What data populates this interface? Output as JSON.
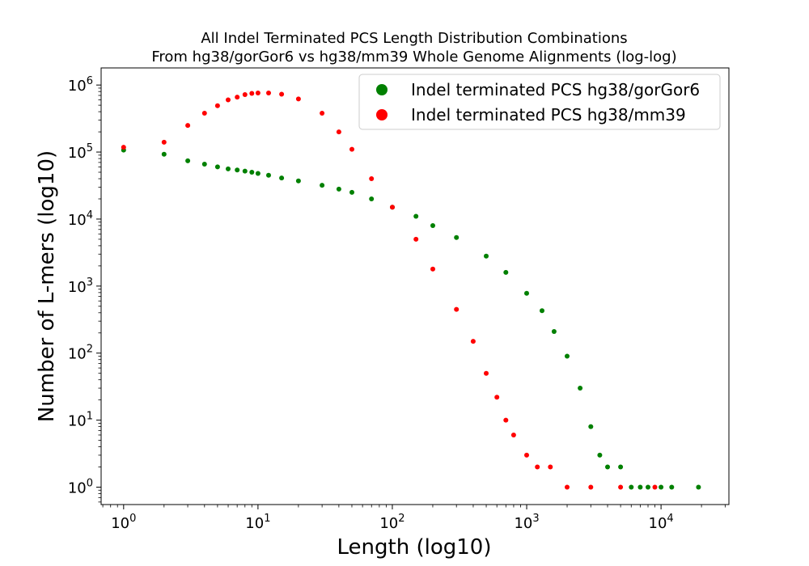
{
  "chart_data": {
    "type": "scatter",
    "title_lines": [
      "All Indel Terminated PCS Length Distribution Combinations",
      "From hg38/gorGor6 vs hg38/mm39 Whole Genome Alignments (log-log)"
    ],
    "xlabel": "Length (log10)",
    "ylabel": "Number of L-mers (log10)",
    "xscale": "log",
    "yscale": "log",
    "xlim": [
      0.68,
      32000
    ],
    "ylim": [
      0.55,
      1800000
    ],
    "grid": false,
    "legend_position": "upper-right",
    "xticks": [
      {
        "base": "10",
        "exp": "0"
      },
      {
        "base": "10",
        "exp": "1"
      },
      {
        "base": "10",
        "exp": "2"
      },
      {
        "base": "10",
        "exp": "3"
      },
      {
        "base": "10",
        "exp": "4"
      }
    ],
    "yticks": [
      {
        "base": "10",
        "exp": "0"
      },
      {
        "base": "10",
        "exp": "1"
      },
      {
        "base": "10",
        "exp": "2"
      },
      {
        "base": "10",
        "exp": "3"
      },
      {
        "base": "10",
        "exp": "4"
      },
      {
        "base": "10",
        "exp": "5"
      },
      {
        "base": "10",
        "exp": "6"
      }
    ],
    "series": [
      {
        "name": "Indel terminated PCS hg38/gorGor6",
        "color": "#008000",
        "points": [
          [
            1,
            107000
          ],
          [
            2,
            93000
          ],
          [
            3,
            74000
          ],
          [
            4,
            66000
          ],
          [
            5,
            60000
          ],
          [
            6,
            56000
          ],
          [
            7,
            54000
          ],
          [
            8,
            52000
          ],
          [
            9,
            50000
          ],
          [
            10,
            48000
          ],
          [
            12,
            45000
          ],
          [
            15,
            41000
          ],
          [
            20,
            37000
          ],
          [
            30,
            32000
          ],
          [
            40,
            28000
          ],
          [
            50,
            25000
          ],
          [
            70,
            20000
          ],
          [
            100,
            15000
          ],
          [
            150,
            11000
          ],
          [
            200,
            8000
          ],
          [
            300,
            5300
          ],
          [
            500,
            2800
          ],
          [
            700,
            1600
          ],
          [
            1000,
            780
          ],
          [
            1300,
            430
          ],
          [
            1600,
            210
          ],
          [
            2000,
            90
          ],
          [
            2500,
            30
          ],
          [
            3000,
            8
          ],
          [
            3500,
            3
          ],
          [
            4000,
            2
          ],
          [
            5000,
            2
          ],
          [
            6000,
            1
          ],
          [
            7000,
            1
          ],
          [
            8000,
            1
          ],
          [
            10000,
            1
          ],
          [
            12000,
            1
          ],
          [
            19000,
            1
          ]
        ]
      },
      {
        "name": "Indel terminated PCS hg38/mm39",
        "color": "#ff0000",
        "points": [
          [
            1,
            118000
          ],
          [
            2,
            140000
          ],
          [
            3,
            250000
          ],
          [
            4,
            380000
          ],
          [
            5,
            490000
          ],
          [
            6,
            600000
          ],
          [
            7,
            660000
          ],
          [
            8,
            720000
          ],
          [
            9,
            750000
          ],
          [
            10,
            760000
          ],
          [
            12,
            760000
          ],
          [
            15,
            730000
          ],
          [
            20,
            620000
          ],
          [
            30,
            380000
          ],
          [
            40,
            200000
          ],
          [
            50,
            110000
          ],
          [
            70,
            40000
          ],
          [
            100,
            15000
          ],
          [
            150,
            5000
          ],
          [
            200,
            1800
          ],
          [
            300,
            450
          ],
          [
            400,
            150
          ],
          [
            500,
            50
          ],
          [
            600,
            22
          ],
          [
            700,
            10
          ],
          [
            800,
            6
          ],
          [
            1000,
            3
          ],
          [
            1200,
            2
          ],
          [
            1500,
            2
          ],
          [
            2000,
            1
          ],
          [
            3000,
            1
          ],
          [
            5000,
            1
          ],
          [
            9000,
            1
          ]
        ]
      }
    ]
  }
}
